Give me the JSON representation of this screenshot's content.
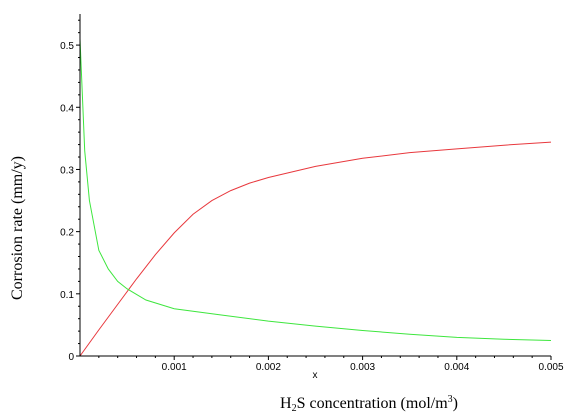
{
  "chart_data": {
    "type": "line",
    "title": "",
    "xlabel_parts": {
      "prefix": "H",
      "sub": "2",
      "middle": "S concentration (mol/m",
      "sup": "3",
      "suffix": ")"
    },
    "x_var_label": "x",
    "ylabel": "Corrosion rate (mm/y)",
    "xlim": [
      0,
      0.005
    ],
    "ylim": [
      0,
      0.55
    ],
    "x_ticks": [
      0.001,
      0.002,
      0.003,
      0.004,
      0.005
    ],
    "x_tick_labels": [
      "0.001",
      "0.002",
      "0.003",
      "0.004",
      "0.005"
    ],
    "y_ticks": [
      0,
      0.1,
      0.2,
      0.3,
      0.4,
      0.5
    ],
    "y_tick_labels": [
      "0",
      "0.1",
      "0.2",
      "0.3",
      "0.4",
      "0.5"
    ],
    "grid": false,
    "legend": "none",
    "series": [
      {
        "color": "#e8383d",
        "x": [
          0,
          0.0002,
          0.0004,
          0.0006,
          0.0008,
          0.001,
          0.0012,
          0.0014,
          0.0016,
          0.0018,
          0.002,
          0.0025,
          0.003,
          0.0035,
          0.004,
          0.0045,
          0.005
        ],
        "y": [
          0,
          0.042,
          0.083,
          0.124,
          0.163,
          0.198,
          0.228,
          0.25,
          0.266,
          0.278,
          0.287,
          0.305,
          0.318,
          0.327,
          0.333,
          0.339,
          0.344
        ]
      },
      {
        "color": "#3ee63e",
        "x": [
          0,
          5e-05,
          0.0001,
          0.0002,
          0.0003,
          0.0004,
          0.0005,
          0.0007,
          0.001,
          0.0015,
          0.002,
          0.0025,
          0.003,
          0.0035,
          0.004,
          0.0045,
          0.005
        ],
        "y": [
          0.51,
          0.33,
          0.25,
          0.17,
          0.14,
          0.12,
          0.108,
          0.09,
          0.076,
          0.066,
          0.056,
          0.048,
          0.041,
          0.035,
          0.03,
          0.027,
          0.025
        ]
      }
    ]
  }
}
